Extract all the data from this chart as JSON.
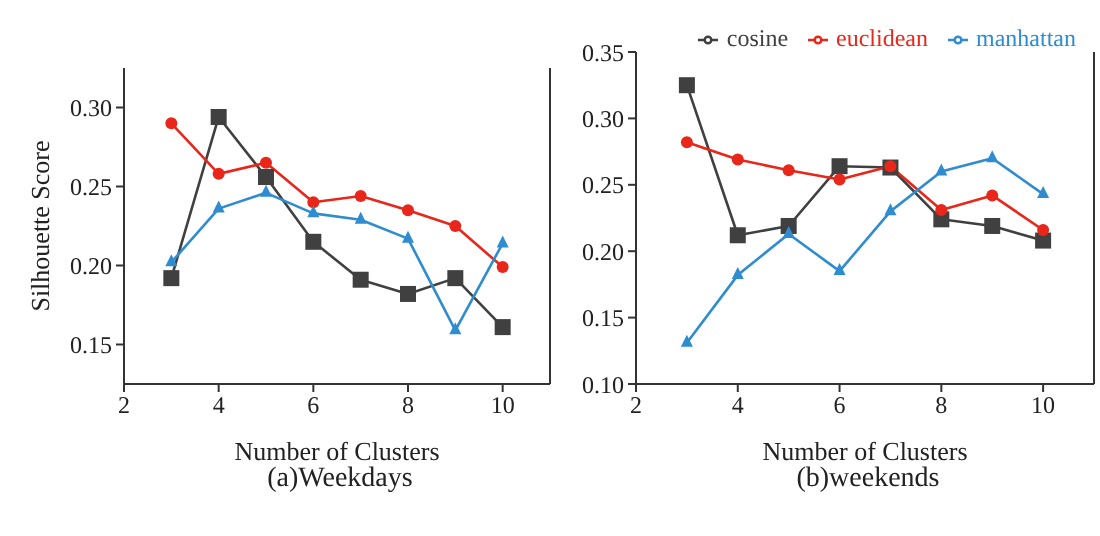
{
  "chart_data": [
    {
      "type": "line",
      "title": "(a)Weekdays",
      "xlabel": "Number of Clusters",
      "ylabel": "Silhouette Score",
      "x": [
        3,
        4,
        5,
        6,
        7,
        8,
        9,
        10
      ],
      "series": [
        {
          "color": "#404040",
          "marker": "square",
          "values": [
            0.192,
            0.294,
            0.256,
            0.215,
            0.191,
            0.182,
            0.192,
            0.161
          ]
        },
        {
          "color": "#e8261a",
          "marker": "circle",
          "values": [
            0.29,
            0.258,
            0.265,
            0.24,
            0.244,
            0.235,
            0.225,
            0.199
          ]
        },
        {
          "color": "#2e8ccf",
          "marker": "triangle",
          "values": [
            0.202,
            0.236,
            0.246,
            0.233,
            0.229,
            0.217,
            0.159,
            0.214
          ]
        }
      ],
      "xlim": [
        2,
        11
      ],
      "xticks": [
        2,
        4,
        6,
        8,
        10
      ],
      "ylim": [
        0.125,
        0.325
      ],
      "yticks": [
        {
          "value": 0.15,
          "label": "0.15"
        },
        {
          "value": 0.2,
          "label": "0.20"
        },
        {
          "value": 0.25,
          "label": "0.25"
        },
        {
          "value": 0.3,
          "label": "0.30"
        }
      ],
      "grid": false,
      "legend": false
    },
    {
      "type": "line",
      "title": "(b)weekends",
      "xlabel": "Number of Clusters",
      "x": [
        3,
        4,
        5,
        6,
        7,
        8,
        9,
        10
      ],
      "series": [
        {
          "name": "cosine",
          "color": "#404040",
          "marker": "square",
          "values": [
            0.325,
            0.212,
            0.219,
            0.264,
            0.263,
            0.224,
            0.219,
            0.208
          ]
        },
        {
          "name": "euclidean",
          "color": "#e8261a",
          "marker": "circle",
          "values": [
            0.282,
            0.269,
            0.261,
            0.254,
            0.264,
            0.231,
            0.242,
            0.216
          ]
        },
        {
          "name": "manhattan",
          "color": "#2e8ccf",
          "marker": "triangle",
          "values": [
            0.131,
            0.182,
            0.213,
            0.185,
            0.23,
            0.26,
            0.27,
            0.243
          ]
        }
      ],
      "xlim": [
        2,
        11
      ],
      "xticks": [
        2,
        4,
        6,
        8,
        10
      ],
      "ylim": [
        0.1,
        0.35
      ],
      "yticks": [
        {
          "value": 0.1,
          "label": "0.10"
        },
        {
          "value": 0.15,
          "label": "0.15"
        },
        {
          "value": 0.2,
          "label": "0.20"
        },
        {
          "value": 0.25,
          "label": "0.25"
        },
        {
          "value": 0.3,
          "label": "0.30"
        },
        {
          "value": 0.35,
          "label": "0.35"
        }
      ],
      "grid": false,
      "legend": "top right"
    }
  ]
}
